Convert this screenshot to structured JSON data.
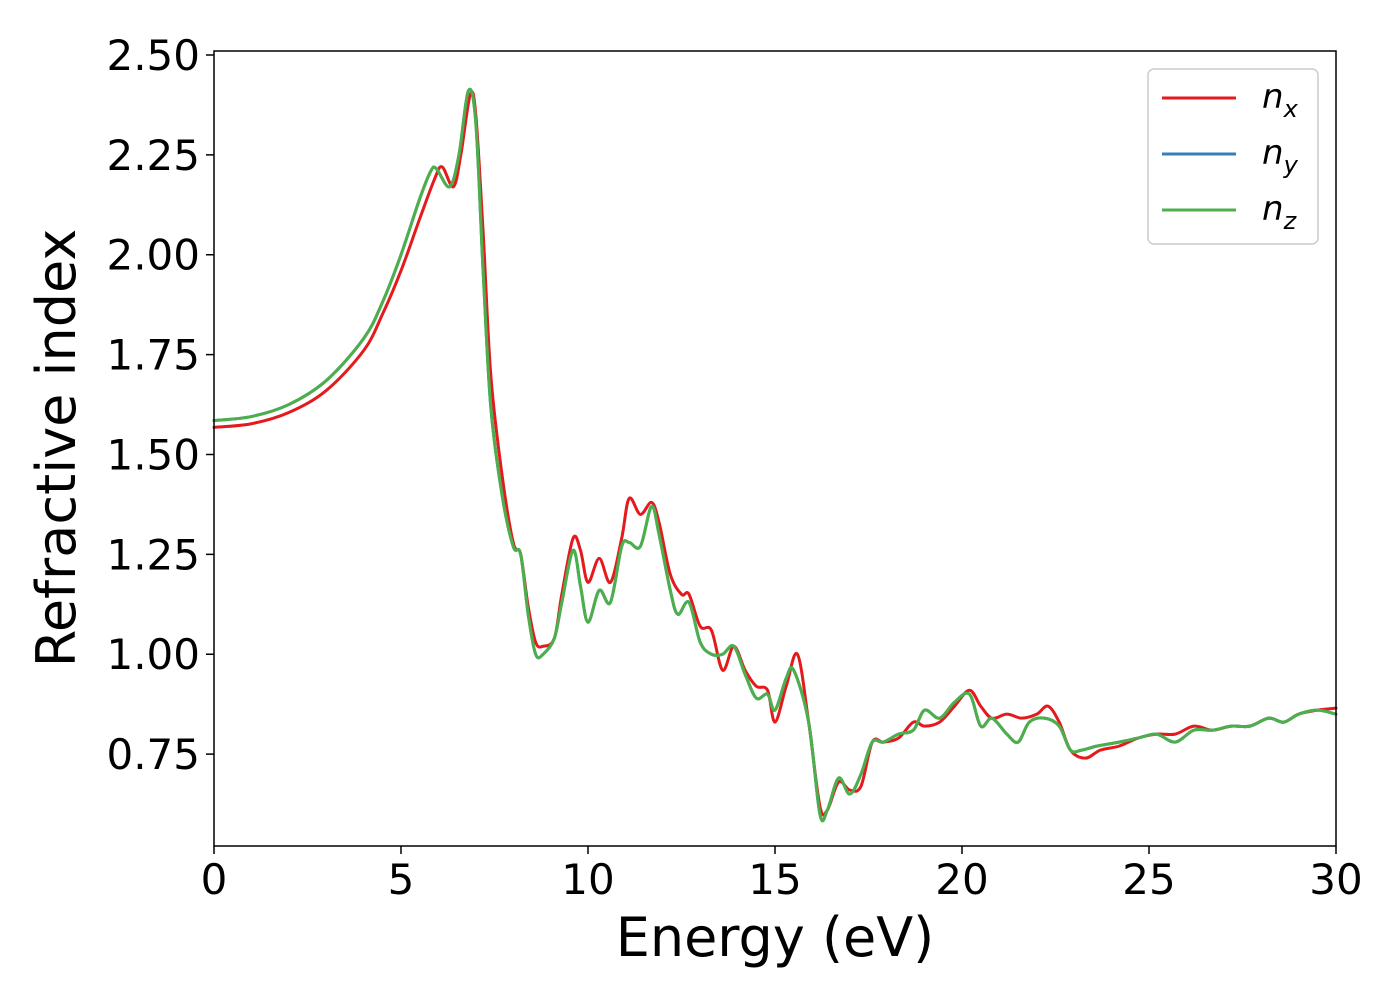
{
  "chart_data": {
    "type": "line",
    "title": "",
    "xlabel": "Energy (eV)",
    "ylabel": "Refractive index",
    "xlim": [
      0,
      30
    ],
    "ylim": [
      0.52,
      2.51
    ],
    "xticks": [
      0,
      5,
      10,
      15,
      20,
      25,
      30
    ],
    "xtick_labels": [
      "0",
      "5",
      "10",
      "15",
      "20",
      "25",
      "30"
    ],
    "yticks": [
      0.75,
      1.0,
      1.25,
      1.5,
      1.75,
      2.0,
      2.25,
      2.5
    ],
    "ytick_labels": [
      "0.75",
      "1.00",
      "1.25",
      "1.50",
      "1.75",
      "2.00",
      "2.25",
      "2.50"
    ],
    "grid": false,
    "legend_position": "top-right",
    "series": [
      {
        "name": "n",
        "subscript": "x",
        "color": "#e41a1c",
        "points": [
          [
            0,
            1.568
          ],
          [
            1,
            1.577
          ],
          [
            2,
            1.605
          ],
          [
            3,
            1.66
          ],
          [
            4,
            1.76
          ],
          [
            4.5,
            1.85
          ],
          [
            5,
            1.96
          ],
          [
            5.5,
            2.09
          ],
          [
            5.9,
            2.19
          ],
          [
            6.1,
            2.22
          ],
          [
            6.4,
            2.17
          ],
          [
            6.6,
            2.25
          ],
          [
            6.85,
            2.4
          ],
          [
            7.0,
            2.35
          ],
          [
            7.2,
            2.05
          ],
          [
            7.4,
            1.7
          ],
          [
            7.7,
            1.45
          ],
          [
            8.0,
            1.28
          ],
          [
            8.2,
            1.25
          ],
          [
            8.4,
            1.12
          ],
          [
            8.6,
            1.03
          ],
          [
            8.8,
            1.02
          ],
          [
            9.1,
            1.04
          ],
          [
            9.3,
            1.15
          ],
          [
            9.6,
            1.29
          ],
          [
            9.8,
            1.26
          ],
          [
            10.0,
            1.18
          ],
          [
            10.3,
            1.24
          ],
          [
            10.6,
            1.18
          ],
          [
            10.9,
            1.29
          ],
          [
            11.1,
            1.39
          ],
          [
            11.4,
            1.35
          ],
          [
            11.7,
            1.38
          ],
          [
            11.9,
            1.33
          ],
          [
            12.2,
            1.2
          ],
          [
            12.5,
            1.15
          ],
          [
            12.7,
            1.15
          ],
          [
            13.0,
            1.07
          ],
          [
            13.3,
            1.06
          ],
          [
            13.6,
            0.96
          ],
          [
            13.9,
            1.02
          ],
          [
            14.2,
            0.96
          ],
          [
            14.5,
            0.92
          ],
          [
            14.8,
            0.91
          ],
          [
            15.0,
            0.83
          ],
          [
            15.3,
            0.92
          ],
          [
            15.6,
            1.0
          ],
          [
            15.9,
            0.83
          ],
          [
            16.2,
            0.62
          ],
          [
            16.4,
            0.61
          ],
          [
            16.7,
            0.68
          ],
          [
            17.0,
            0.66
          ],
          [
            17.3,
            0.67
          ],
          [
            17.6,
            0.78
          ],
          [
            17.9,
            0.78
          ],
          [
            18.3,
            0.79
          ],
          [
            18.7,
            0.83
          ],
          [
            19.0,
            0.82
          ],
          [
            19.4,
            0.83
          ],
          [
            19.8,
            0.87
          ],
          [
            20.2,
            0.91
          ],
          [
            20.5,
            0.87
          ],
          [
            20.8,
            0.84
          ],
          [
            21.2,
            0.85
          ],
          [
            21.6,
            0.84
          ],
          [
            22.0,
            0.85
          ],
          [
            22.3,
            0.87
          ],
          [
            22.6,
            0.83
          ],
          [
            22.9,
            0.76
          ],
          [
            23.3,
            0.74
          ],
          [
            23.7,
            0.76
          ],
          [
            24.2,
            0.77
          ],
          [
            24.7,
            0.79
          ],
          [
            25.2,
            0.8
          ],
          [
            25.7,
            0.8
          ],
          [
            26.2,
            0.82
          ],
          [
            26.7,
            0.81
          ],
          [
            27.2,
            0.82
          ],
          [
            27.7,
            0.82
          ],
          [
            28.2,
            0.84
          ],
          [
            28.6,
            0.83
          ],
          [
            29.0,
            0.85
          ],
          [
            29.5,
            0.86
          ],
          [
            30.0,
            0.865
          ]
        ]
      },
      {
        "name": "n",
        "subscript": "y",
        "color": "#377eb8",
        "points": [
          [
            0,
            1.585
          ],
          [
            1,
            1.595
          ],
          [
            2,
            1.625
          ],
          [
            3,
            1.685
          ],
          [
            4,
            1.79
          ],
          [
            4.5,
            1.88
          ],
          [
            5,
            2.0
          ],
          [
            5.5,
            2.14
          ],
          [
            5.8,
            2.21
          ],
          [
            5.95,
            2.215
          ],
          [
            6.3,
            2.17
          ],
          [
            6.55,
            2.25
          ],
          [
            6.8,
            2.41
          ],
          [
            7.0,
            2.33
          ],
          [
            7.2,
            1.95
          ],
          [
            7.4,
            1.62
          ],
          [
            7.7,
            1.4
          ],
          [
            8.0,
            1.27
          ],
          [
            8.2,
            1.25
          ],
          [
            8.4,
            1.1
          ],
          [
            8.6,
            1.0
          ],
          [
            8.8,
            1.0
          ],
          [
            9.1,
            1.04
          ],
          [
            9.3,
            1.13
          ],
          [
            9.6,
            1.26
          ],
          [
            9.8,
            1.17
          ],
          [
            10.0,
            1.08
          ],
          [
            10.3,
            1.16
          ],
          [
            10.6,
            1.13
          ],
          [
            10.9,
            1.27
          ],
          [
            11.1,
            1.28
          ],
          [
            11.4,
            1.27
          ],
          [
            11.7,
            1.37
          ],
          [
            11.9,
            1.3
          ],
          [
            12.2,
            1.16
          ],
          [
            12.4,
            1.1
          ],
          [
            12.7,
            1.13
          ],
          [
            13.0,
            1.03
          ],
          [
            13.3,
            1.0
          ],
          [
            13.6,
            1.0
          ],
          [
            13.9,
            1.02
          ],
          [
            14.2,
            0.95
          ],
          [
            14.5,
            0.89
          ],
          [
            14.8,
            0.9
          ],
          [
            15.0,
            0.86
          ],
          [
            15.3,
            0.94
          ],
          [
            15.5,
            0.96
          ],
          [
            15.9,
            0.83
          ],
          [
            16.2,
            0.6
          ],
          [
            16.4,
            0.61
          ],
          [
            16.7,
            0.69
          ],
          [
            17.0,
            0.65
          ],
          [
            17.3,
            0.7
          ],
          [
            17.6,
            0.78
          ],
          [
            17.9,
            0.78
          ],
          [
            18.3,
            0.8
          ],
          [
            18.7,
            0.81
          ],
          [
            19.0,
            0.86
          ],
          [
            19.4,
            0.84
          ],
          [
            19.8,
            0.88
          ],
          [
            20.2,
            0.9
          ],
          [
            20.5,
            0.82
          ],
          [
            20.8,
            0.84
          ],
          [
            21.2,
            0.8
          ],
          [
            21.5,
            0.78
          ],
          [
            21.8,
            0.83
          ],
          [
            22.2,
            0.84
          ],
          [
            22.6,
            0.82
          ],
          [
            22.9,
            0.76
          ],
          [
            23.2,
            0.76
          ],
          [
            23.6,
            0.77
          ],
          [
            24.2,
            0.78
          ],
          [
            24.7,
            0.79
          ],
          [
            25.2,
            0.8
          ],
          [
            25.7,
            0.78
          ],
          [
            26.2,
            0.81
          ],
          [
            26.7,
            0.81
          ],
          [
            27.2,
            0.82
          ],
          [
            27.7,
            0.82
          ],
          [
            28.2,
            0.84
          ],
          [
            28.6,
            0.83
          ],
          [
            29.0,
            0.85
          ],
          [
            29.5,
            0.86
          ],
          [
            30.0,
            0.85
          ]
        ]
      },
      {
        "name": "n",
        "subscript": "z",
        "color": "#4daf4a",
        "points": [
          [
            0,
            1.585
          ],
          [
            1,
            1.595
          ],
          [
            2,
            1.625
          ],
          [
            3,
            1.685
          ],
          [
            4,
            1.79
          ],
          [
            4.5,
            1.88
          ],
          [
            5,
            2.0
          ],
          [
            5.5,
            2.14
          ],
          [
            5.8,
            2.21
          ],
          [
            5.95,
            2.215
          ],
          [
            6.3,
            2.17
          ],
          [
            6.55,
            2.25
          ],
          [
            6.8,
            2.41
          ],
          [
            7.0,
            2.33
          ],
          [
            7.2,
            1.95
          ],
          [
            7.4,
            1.62
          ],
          [
            7.7,
            1.4
          ],
          [
            8.0,
            1.27
          ],
          [
            8.2,
            1.25
          ],
          [
            8.4,
            1.1
          ],
          [
            8.6,
            1.0
          ],
          [
            8.8,
            1.0
          ],
          [
            9.1,
            1.04
          ],
          [
            9.3,
            1.13
          ],
          [
            9.6,
            1.26
          ],
          [
            9.8,
            1.17
          ],
          [
            10.0,
            1.08
          ],
          [
            10.3,
            1.16
          ],
          [
            10.6,
            1.13
          ],
          [
            10.9,
            1.27
          ],
          [
            11.1,
            1.28
          ],
          [
            11.4,
            1.27
          ],
          [
            11.7,
            1.37
          ],
          [
            11.9,
            1.3
          ],
          [
            12.2,
            1.16
          ],
          [
            12.4,
            1.1
          ],
          [
            12.7,
            1.13
          ],
          [
            13.0,
            1.03
          ],
          [
            13.3,
            1.0
          ],
          [
            13.6,
            1.0
          ],
          [
            13.9,
            1.02
          ],
          [
            14.2,
            0.95
          ],
          [
            14.5,
            0.89
          ],
          [
            14.8,
            0.9
          ],
          [
            15.0,
            0.86
          ],
          [
            15.3,
            0.94
          ],
          [
            15.5,
            0.96
          ],
          [
            15.9,
            0.83
          ],
          [
            16.2,
            0.6
          ],
          [
            16.4,
            0.61
          ],
          [
            16.7,
            0.69
          ],
          [
            17.0,
            0.65
          ],
          [
            17.3,
            0.7
          ],
          [
            17.6,
            0.78
          ],
          [
            17.9,
            0.78
          ],
          [
            18.3,
            0.8
          ],
          [
            18.7,
            0.81
          ],
          [
            19.0,
            0.86
          ],
          [
            19.4,
            0.84
          ],
          [
            19.8,
            0.88
          ],
          [
            20.2,
            0.9
          ],
          [
            20.5,
            0.82
          ],
          [
            20.8,
            0.84
          ],
          [
            21.2,
            0.8
          ],
          [
            21.5,
            0.78
          ],
          [
            21.8,
            0.83
          ],
          [
            22.2,
            0.84
          ],
          [
            22.6,
            0.82
          ],
          [
            22.9,
            0.76
          ],
          [
            23.2,
            0.76
          ],
          [
            23.6,
            0.77
          ],
          [
            24.2,
            0.78
          ],
          [
            24.7,
            0.79
          ],
          [
            25.2,
            0.8
          ],
          [
            25.7,
            0.78
          ],
          [
            26.2,
            0.81
          ],
          [
            26.7,
            0.81
          ],
          [
            27.2,
            0.82
          ],
          [
            27.7,
            0.82
          ],
          [
            28.2,
            0.84
          ],
          [
            28.6,
            0.83
          ],
          [
            29.0,
            0.85
          ],
          [
            29.5,
            0.86
          ],
          [
            30.0,
            0.85
          ]
        ]
      }
    ]
  }
}
